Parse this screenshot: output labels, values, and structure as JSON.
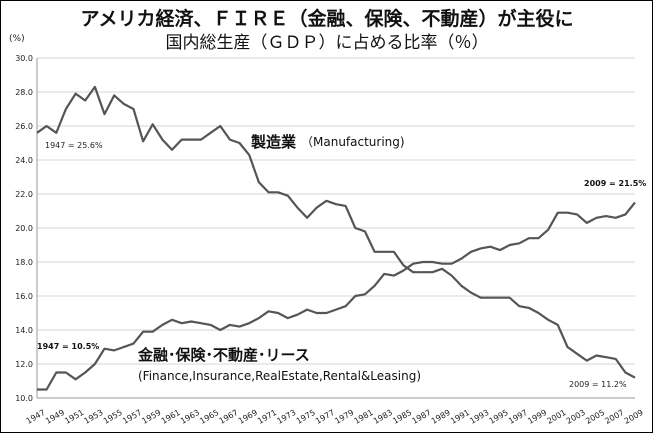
{
  "chart_data": {
    "type": "line",
    "title": "アメリカ経済、ＦＩＲＥ（金融、保険、不動産）が主役に",
    "subtitle": "国内総生産（ＧＤＰ）に占める比率（％）",
    "ylabel": "(%)",
    "xlabel": "",
    "ylim": [
      10.0,
      30.0
    ],
    "yticks": [
      "10.0",
      "12.0",
      "14.0",
      "16.0",
      "18.0",
      "20.0",
      "22.0",
      "24.0",
      "26.0",
      "28.0",
      "30.0"
    ],
    "xticks": [
      "1947",
      "1949",
      "1951",
      "1953",
      "1955",
      "1957",
      "1959",
      "1961",
      "1963",
      "1965",
      "1967",
      "1969",
      "1971",
      "1973",
      "1975",
      "1977",
      "1979",
      "1981",
      "1983",
      "1985",
      "1987",
      "1989",
      "1991",
      "1993",
      "1995",
      "1997",
      "1999",
      "2001",
      "2003",
      "2005",
      "2007",
      "2009"
    ],
    "grid": true,
    "x": [
      1947,
      1948,
      1949,
      1950,
      1951,
      1952,
      1953,
      1954,
      1955,
      1956,
      1957,
      1958,
      1959,
      1960,
      1961,
      1962,
      1963,
      1964,
      1965,
      1966,
      1967,
      1968,
      1969,
      1970,
      1971,
      1972,
      1973,
      1974,
      1975,
      1976,
      1977,
      1978,
      1979,
      1980,
      1981,
      1982,
      1983,
      1984,
      1985,
      1986,
      1987,
      1988,
      1989,
      1990,
      1991,
      1992,
      1993,
      1994,
      1995,
      1996,
      1997,
      1998,
      1999,
      2000,
      2001,
      2002,
      2003,
      2004,
      2005,
      2006,
      2007,
      2008,
      2009
    ],
    "series": [
      {
        "key": "manufacturing",
        "name": "製造業",
        "name_en": "（Manufacturing)",
        "values": [
          25.6,
          26.0,
          25.6,
          27.0,
          27.9,
          27.5,
          28.3,
          26.7,
          27.8,
          27.3,
          27.0,
          25.1,
          26.1,
          25.2,
          24.6,
          25.2,
          25.2,
          25.2,
          25.6,
          26.0,
          25.2,
          25.0,
          24.3,
          22.7,
          22.1,
          22.1,
          21.9,
          21.2,
          20.6,
          21.2,
          21.6,
          21.4,
          21.3,
          20.0,
          19.8,
          18.6,
          18.6,
          18.6,
          17.8,
          17.4,
          17.4,
          17.4,
          17.6,
          17.2,
          16.6,
          16.2,
          15.9,
          15.9,
          15.9,
          15.9,
          15.4,
          15.3,
          15.0,
          14.6,
          14.3,
          13.0,
          12.6,
          12.2,
          12.5,
          12.4,
          12.3,
          11.5,
          11.2
        ]
      },
      {
        "key": "fire",
        "name": "金融･保険･不動産･リース",
        "name_en": "(Finance,Insurance,RealEstate,Rental&Leasing)",
        "values": [
          10.5,
          10.5,
          11.5,
          11.5,
          11.1,
          11.5,
          12.0,
          12.9,
          12.8,
          13.0,
          13.2,
          13.9,
          13.9,
          14.3,
          14.6,
          14.4,
          14.5,
          14.4,
          14.3,
          14.0,
          14.3,
          14.2,
          14.4,
          14.7,
          15.1,
          15.0,
          14.7,
          14.9,
          15.2,
          15.0,
          15.0,
          15.2,
          15.4,
          16.0,
          16.1,
          16.6,
          17.3,
          17.2,
          17.5,
          17.9,
          18.0,
          18.0,
          17.9,
          17.9,
          18.2,
          18.6,
          18.8,
          18.9,
          18.7,
          19.0,
          19.1,
          19.4,
          19.4,
          19.9,
          20.9,
          20.9,
          20.8,
          20.3,
          20.6,
          20.7,
          20.6,
          20.8,
          21.5
        ]
      }
    ],
    "annotations": [
      {
        "key": "mfg_1947",
        "text": "1947 = 25.6%"
      },
      {
        "key": "fire_1947",
        "text": "1947 = 10.5%"
      },
      {
        "key": "fire_2009",
        "text": "2009 = 21.5%"
      },
      {
        "key": "mfg_2009",
        "text": "2009 = 11.2%"
      }
    ]
  }
}
